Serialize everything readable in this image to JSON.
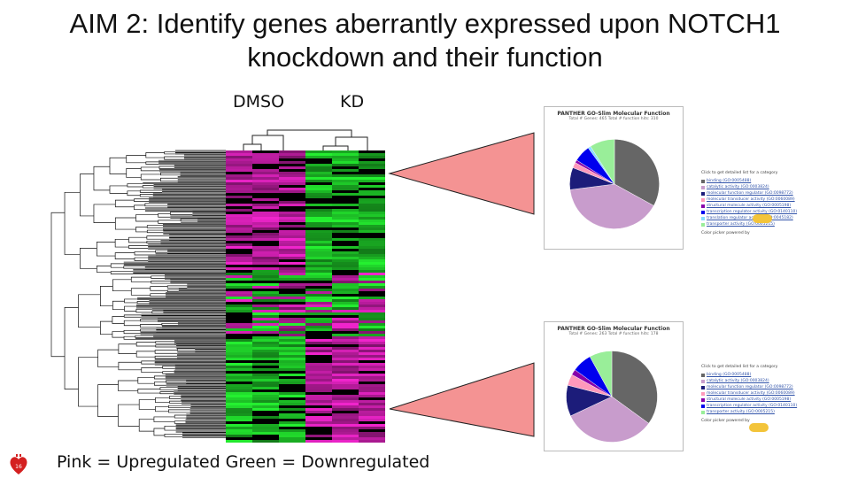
{
  "slide": {
    "title_line1": "AIM 2: Identify genes aberrantly expressed upon NOTCH1",
    "title_line2": "knockdown and their function",
    "labels": {
      "dmso": "DMSO",
      "kd": "KD"
    },
    "footer": "Pink = Upregulated Green = Downregulated",
    "slide_number": "16"
  },
  "colors": {
    "pink": "#e040c8",
    "green": "#22dd33",
    "wedge": "#f49393"
  },
  "panther_top": {
    "title": "PANTHER GO-Slim Molecular Function",
    "subtitle": "Total # Genes: 465    Total # function hits: 310",
    "legend_heading": "Click to get detailed list for a category",
    "legend": [
      {
        "label": "binding (GO:0005488)",
        "color": "#666666"
      },
      {
        "label": "catalytic activity (GO:0003824)",
        "color": "#c89ccc"
      },
      {
        "label": "molecular function regulator (GO:0098772)",
        "color": "#1c1c7a"
      },
      {
        "label": "molecular transducer activity (GO:0060089)",
        "color": "#ff99bb"
      },
      {
        "label": "structural molecule activity (GO:0005198)",
        "color": "#8800aa"
      },
      {
        "label": "transcription regulator activity (GO:0140110)",
        "color": "#0000ee"
      },
      {
        "label": "translation regulator activity (GO:0045182)",
        "color": "#88ddff"
      },
      {
        "label": "transporter activity (GO:0005215)",
        "color": "#99ee99"
      }
    ],
    "footer": "Color picker powered by"
  },
  "panther_bottom": {
    "title": "PANTHER GO-Slim Molecular Function",
    "subtitle": "Total # Genes: 263    Total # function hits: 178",
    "legend_heading": "Click to get detailed list for a category",
    "legend": [
      {
        "label": "binding (GO:0005488)",
        "color": "#666666"
      },
      {
        "label": "catalytic activity (GO:0003824)",
        "color": "#c89ccc"
      },
      {
        "label": "molecular function regulator (GO:0098772)",
        "color": "#1c1c7a"
      },
      {
        "label": "molecular transducer activity (GO:0060089)",
        "color": "#ff99bb"
      },
      {
        "label": "structural molecule activity (GO:0005198)",
        "color": "#8800aa"
      },
      {
        "label": "transcription regulator activity (GO:0140110)",
        "color": "#0000ee"
      },
      {
        "label": "transporter activity (GO:0005215)",
        "color": "#99ee99"
      }
    ],
    "footer": "Color picker powered by"
  }
}
